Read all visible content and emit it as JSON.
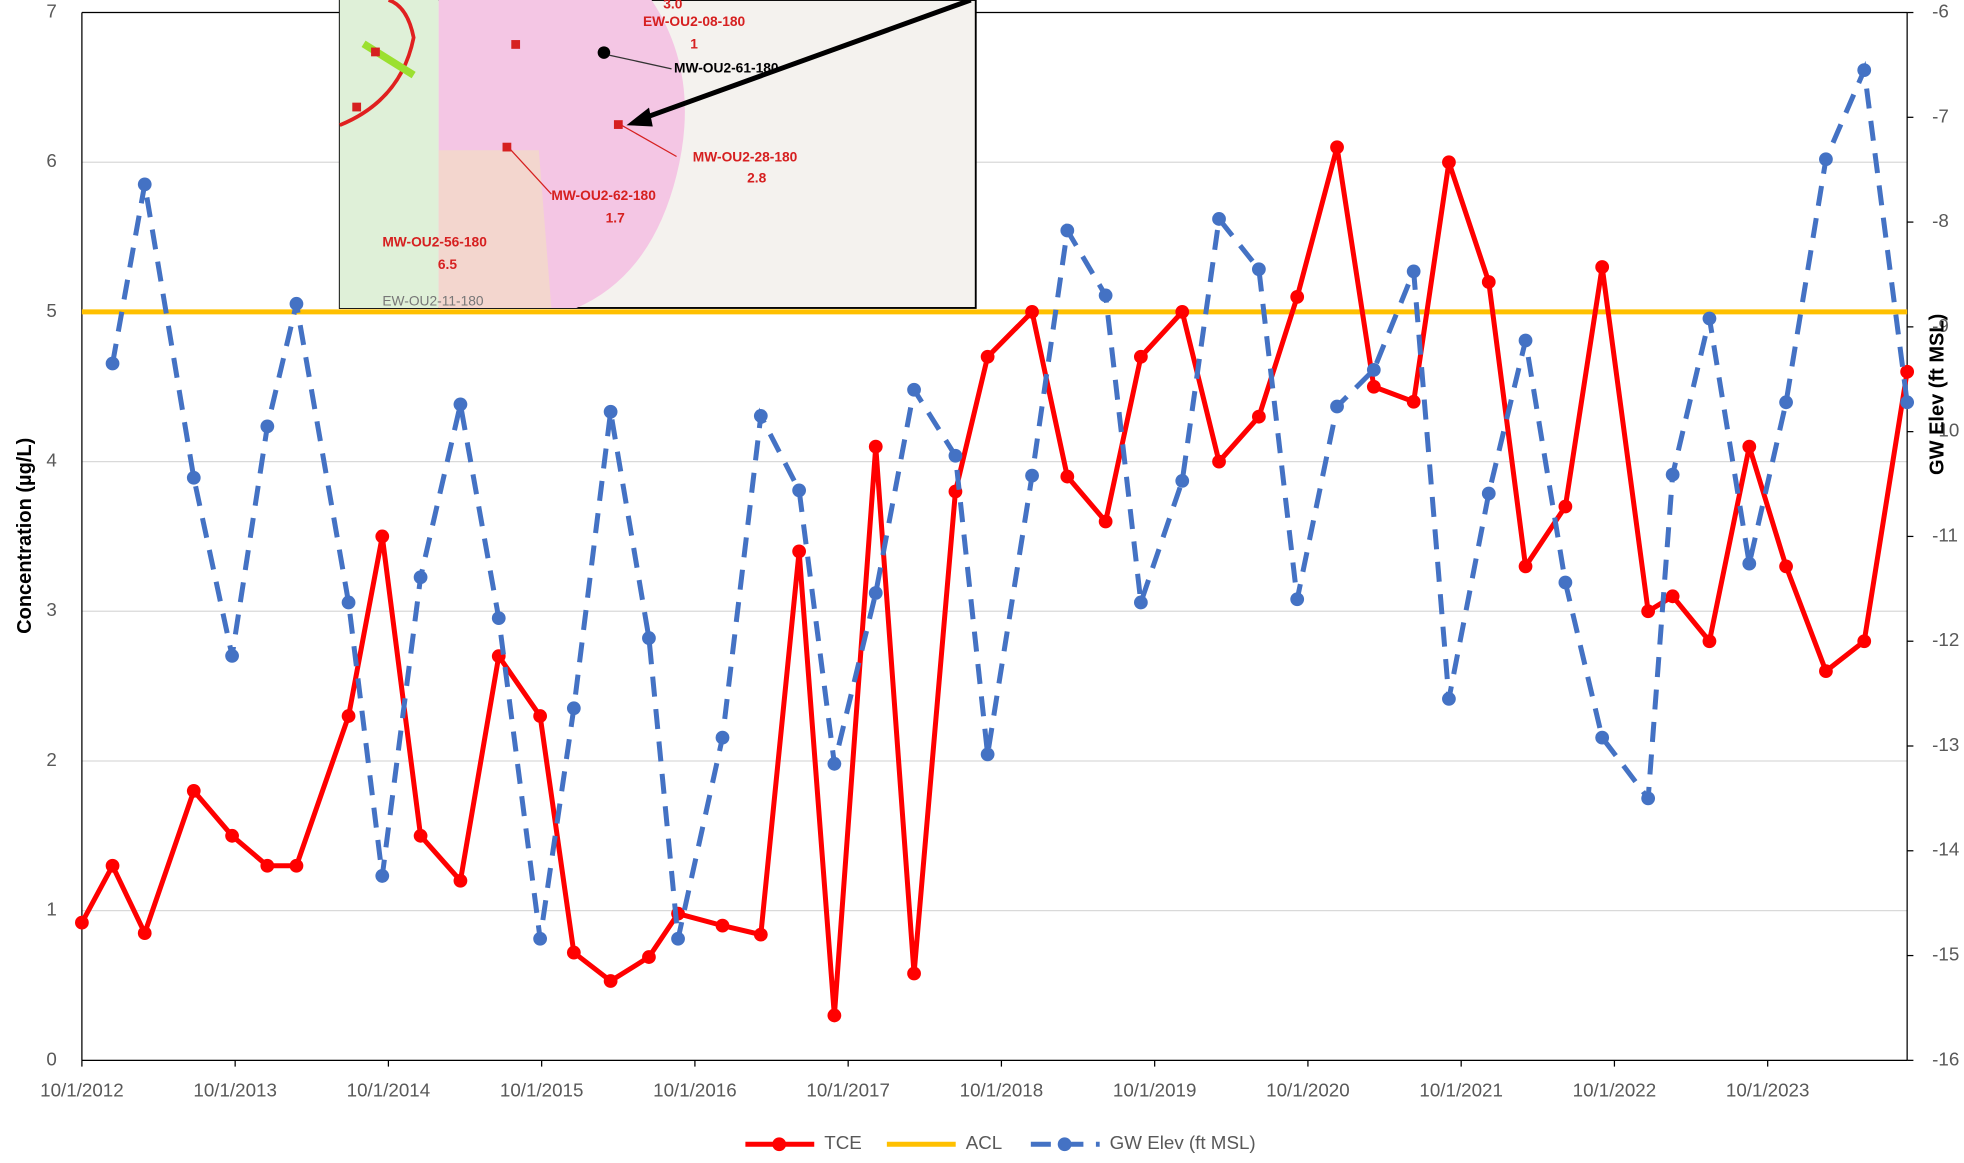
{
  "chart_data": {
    "type": "line",
    "y_label": "Concentration (µg/L)",
    "y2_label": "GW Elev (ft MSL)",
    "x": [
      2012.75,
      2012.95,
      2013.16,
      2013.48,
      2013.73,
      2013.96,
      2014.15,
      2014.49,
      2014.71,
      2014.96,
      2015.22,
      2015.47,
      2015.74,
      2015.96,
      2016.2,
      2016.45,
      2016.64,
      2016.93,
      2017.18,
      2017.43,
      2017.66,
      2017.93,
      2018.18,
      2018.45,
      2018.66,
      2018.95,
      2019.18,
      2019.43,
      2019.66,
      2019.93,
      2020.17,
      2020.43,
      2020.68,
      2020.94,
      2021.18,
      2021.44,
      2021.67,
      2021.93,
      2022.17,
      2022.43,
      2022.67,
      2022.97,
      2023.13,
      2023.37,
      2023.63,
      2023.87,
      2024.13,
      2024.38,
      2024.66
    ],
    "series": [
      {
        "name": "TCE",
        "color": "#ff0000",
        "dash": false,
        "values": [
          0.92,
          1.3,
          0.85,
          1.8,
          1.5,
          1.3,
          1.3,
          2.3,
          3.5,
          1.5,
          1.2,
          2.7,
          2.3,
          0.72,
          0.53,
          0.69,
          0.98,
          0.9,
          0.84,
          3.4,
          0.3,
          4.1,
          0.58,
          3.8,
          4.7,
          5.0,
          3.9,
          3.6,
          4.7,
          5.0,
          4.0,
          4.3,
          5.1,
          6.1,
          4.5,
          4.4,
          6.0,
          5.2,
          3.3,
          3.7,
          5.3,
          3.0,
          3.1,
          2.8,
          4.1,
          3.3,
          2.6,
          2.8,
          4.6
        ]
      },
      {
        "name": "GW Elev (ft MSL)",
        "color": "#4472c4",
        "dash": true,
        "axis": "y2",
        "values": [
          null,
          -9.35,
          -7.64,
          -10.44,
          -12.14,
          -9.95,
          -8.78,
          -11.63,
          -14.24,
          -11.39,
          -9.74,
          -11.78,
          -14.84,
          -12.64,
          -9.81,
          -11.97,
          -14.84,
          -12.92,
          -9.85,
          -10.56,
          -13.17,
          -11.54,
          -9.6,
          -10.23,
          -13.08,
          -10.42,
          -8.08,
          -8.7,
          -11.63,
          -10.47,
          -7.97,
          -8.45,
          -11.6,
          -9.76,
          -9.41,
          -8.47,
          -12.55,
          -10.59,
          -9.13,
          -11.44,
          -12.92,
          -13.5,
          -10.41,
          -8.92,
          -11.26,
          -9.72,
          -7.4,
          -6.55,
          -9.72
        ]
      }
    ],
    "reference_line": {
      "name": "ACL",
      "value": 5,
      "color": "#ffc000"
    },
    "xlim": [
      2012.75,
      2024.66
    ],
    "xticks": [
      {
        "value": 2012.75,
        "label": "10/1/2012"
      },
      {
        "value": 2013.75,
        "label": "10/1/2013"
      },
      {
        "value": 2014.75,
        "label": "10/1/2014"
      },
      {
        "value": 2015.75,
        "label": "10/1/2015"
      },
      {
        "value": 2016.75,
        "label": "10/1/2016"
      },
      {
        "value": 2017.75,
        "label": "10/1/2017"
      },
      {
        "value": 2018.75,
        "label": "10/1/2018"
      },
      {
        "value": 2019.75,
        "label": "10/1/2019"
      },
      {
        "value": 2020.75,
        "label": "10/1/2020"
      },
      {
        "value": 2021.75,
        "label": "10/1/2021"
      },
      {
        "value": 2022.75,
        "label": "10/1/2022"
      },
      {
        "value": 2023.75,
        "label": "10/1/2023"
      }
    ],
    "ylim": [
      0,
      7
    ],
    "yticks": [
      0,
      1,
      2,
      3,
      4,
      5,
      6,
      7
    ],
    "y2lim": [
      -16,
      -6
    ],
    "y2ticks": [
      -16,
      -15,
      -14,
      -13,
      -12,
      -11,
      -10,
      -9,
      -8,
      -7,
      -6
    ],
    "grid": true,
    "legend": "bottom"
  },
  "inset_labels": [
    "3.0",
    "EW-OU2-08-180",
    "1",
    "MW-OU2-61-180",
    "MW-OU2-28-180",
    "2.8",
    "MW-OU2-62-180",
    "1.7",
    "MW-OU2-56-180",
    "6.5",
    "EW-OU2-11-180"
  ]
}
